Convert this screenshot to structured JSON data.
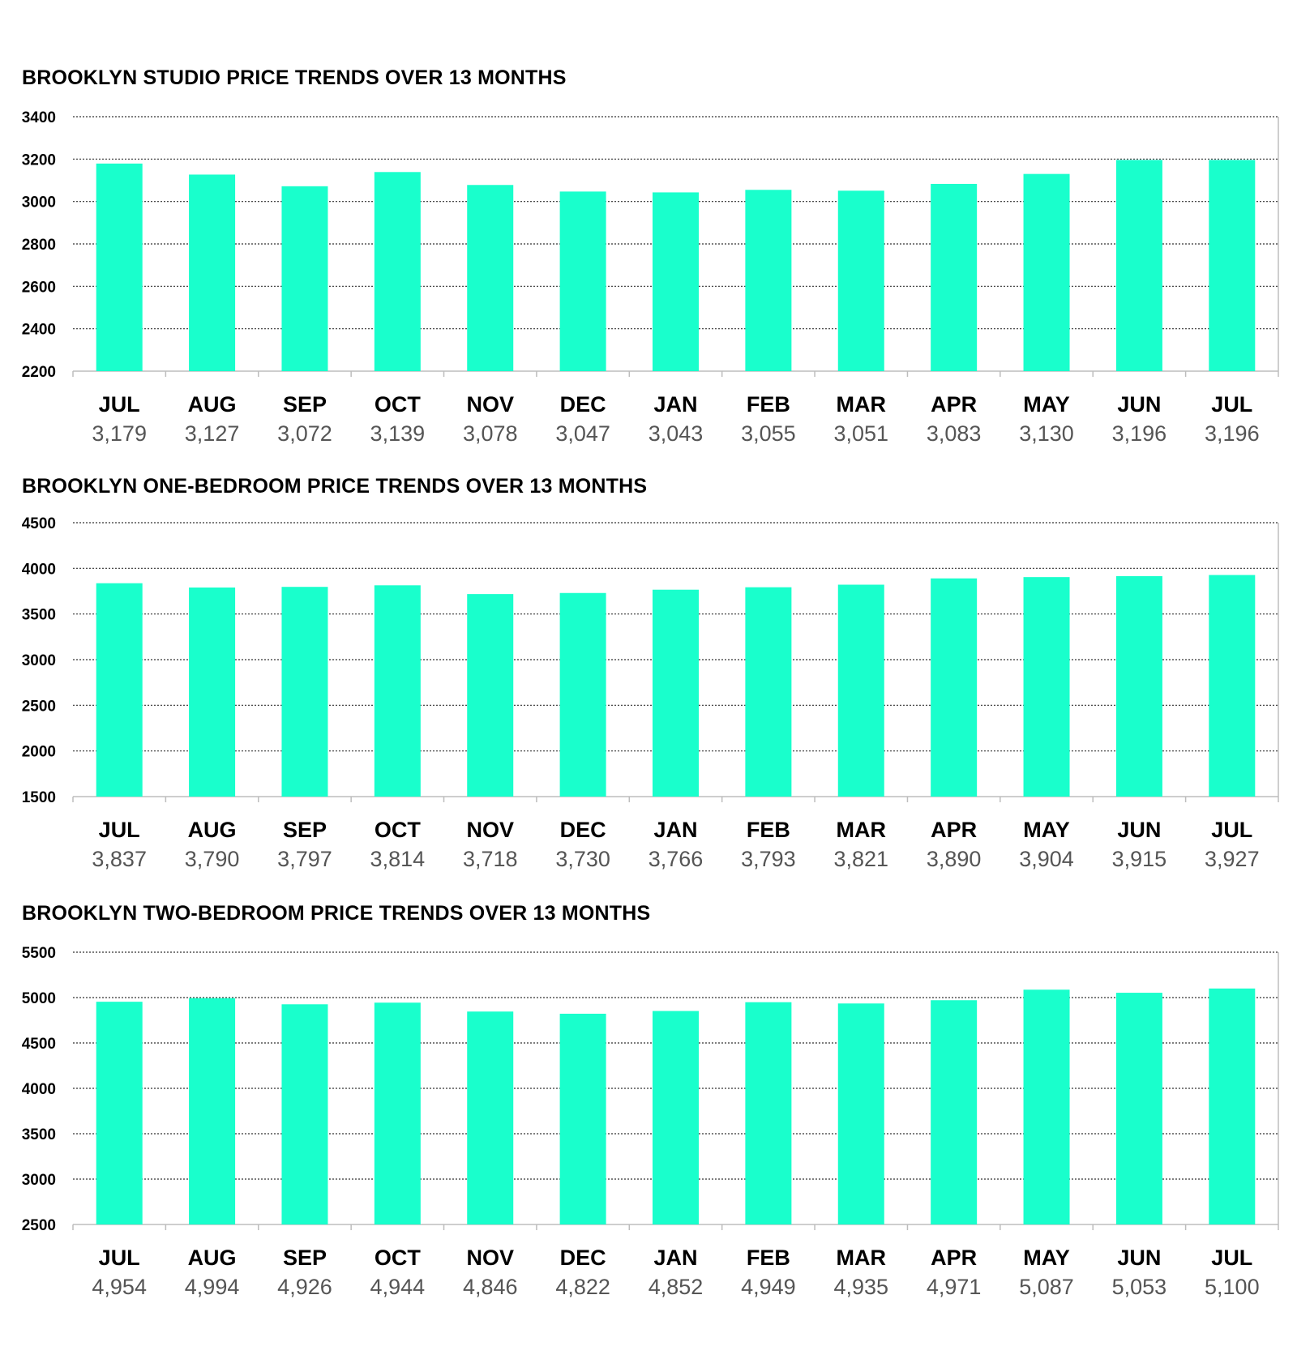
{
  "chart_data": [
    {
      "type": "bar",
      "title": "BROOKLYN STUDIO PRICE TRENDS OVER 13 MONTHS",
      "categories": [
        "JUL",
        "AUG",
        "SEP",
        "OCT",
        "NOV",
        "DEC",
        "JAN",
        "FEB",
        "MAR",
        "APR",
        "MAY",
        "JUN",
        "JUL"
      ],
      "values": [
        3179,
        3127,
        3072,
        3139,
        3078,
        3047,
        3043,
        3055,
        3051,
        3083,
        3130,
        3196,
        3196
      ],
      "value_labels": [
        "3,179",
        "3,127",
        "3,072",
        "3,139",
        "3,078",
        "3,047",
        "3,043",
        "3,055",
        "3,051",
        "3,083",
        "3,130",
        "3,196",
        "3,196"
      ],
      "yticks": [
        "2200",
        "2400",
        "2600",
        "2800",
        "3000",
        "3200",
        "3400"
      ],
      "ylim": [
        2200,
        3400
      ],
      "grid": "horizontal dotted",
      "bar_color": "#19FFCC"
    },
    {
      "type": "bar",
      "title": "BROOKLYN ONE-BEDROOM PRICE TRENDS OVER 13 MONTHS",
      "categories": [
        "JUL",
        "AUG",
        "SEP",
        "OCT",
        "NOV",
        "DEC",
        "JAN",
        "FEB",
        "MAR",
        "APR",
        "MAY",
        "JUN",
        "JUL"
      ],
      "values": [
        3837,
        3790,
        3797,
        3814,
        3718,
        3730,
        3766,
        3793,
        3821,
        3890,
        3904,
        3915,
        3927
      ],
      "value_labels": [
        "3,837",
        "3,790",
        "3,797",
        "3,814",
        "3,718",
        "3,730",
        "3,766",
        "3,793",
        "3,821",
        "3,890",
        "3,904",
        "3,915",
        "3,927"
      ],
      "yticks": [
        "1500",
        "2000",
        "2500",
        "3000",
        "3500",
        "4000",
        "4500"
      ],
      "ylim": [
        1500,
        4500
      ],
      "grid": "horizontal dotted",
      "bar_color": "#19FFCC"
    },
    {
      "type": "bar",
      "title": "BROOKLYN TWO-BEDROOM PRICE TRENDS OVER 13 MONTHS",
      "categories": [
        "JUL",
        "AUG",
        "SEP",
        "OCT",
        "NOV",
        "DEC",
        "JAN",
        "FEB",
        "MAR",
        "APR",
        "MAY",
        "JUN",
        "JUL"
      ],
      "values": [
        4954,
        4994,
        4926,
        4944,
        4846,
        4822,
        4852,
        4949,
        4935,
        4971,
        5087,
        5053,
        5100
      ],
      "value_labels": [
        "4,954",
        "4,994",
        "4,926",
        "4,944",
        "4,846",
        "4,822",
        "4,852",
        "4,949",
        "4,935",
        "4,971",
        "5,087",
        "5,053",
        "5,100"
      ],
      "yticks": [
        "2500",
        "3000",
        "3500",
        "4000",
        "4500",
        "5000",
        "5500"
      ],
      "ylim": [
        2500,
        5500
      ],
      "grid": "horizontal dotted",
      "bar_color": "#19FFCC"
    }
  ]
}
